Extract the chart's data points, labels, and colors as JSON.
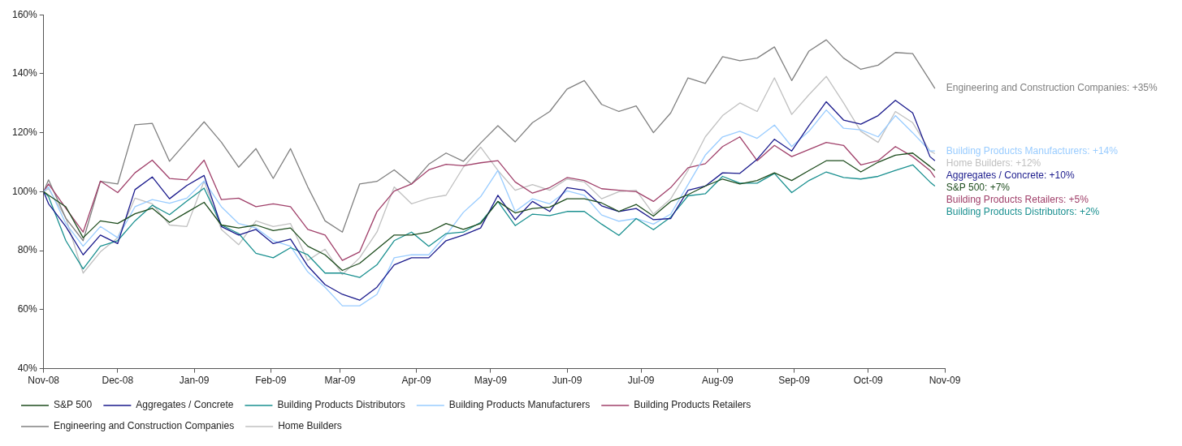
{
  "chart_data": {
    "type": "line",
    "legend": "bottom",
    "grid": false,
    "marker": "none",
    "line_style": "solid",
    "x": [
      "2008-11-01",
      "2008-11-03",
      "2008-11-10",
      "2008-11-17",
      "2008-11-24",
      "2008-12-01",
      "2008-12-08",
      "2008-12-15",
      "2008-12-22",
      "2008-12-29",
      "2009-01-05",
      "2009-01-12",
      "2009-01-19",
      "2009-01-26",
      "2009-02-02",
      "2009-02-09",
      "2009-02-16",
      "2009-02-23",
      "2009-03-02",
      "2009-03-09",
      "2009-03-16",
      "2009-03-23",
      "2009-03-30",
      "2009-04-06",
      "2009-04-13",
      "2009-04-20",
      "2009-04-27",
      "2009-05-04",
      "2009-05-11",
      "2009-05-18",
      "2009-05-25",
      "2009-06-01",
      "2009-06-08",
      "2009-06-15",
      "2009-06-22",
      "2009-06-29",
      "2009-07-06",
      "2009-07-13",
      "2009-07-20",
      "2009-07-27",
      "2009-08-03",
      "2009-08-10",
      "2009-08-17",
      "2009-08-24",
      "2009-08-31",
      "2009-09-07",
      "2009-09-14",
      "2009-09-21",
      "2009-09-28",
      "2009-10-05",
      "2009-10-12",
      "2009-10-19",
      "2009-10-26",
      "2009-10-28"
    ],
    "xlim": [
      "2008-11-01",
      "2009-11-01"
    ],
    "xticks": [
      {
        "value": "2008-11",
        "label": "Nov-08"
      },
      {
        "value": "2008-12",
        "label": "Dec-08"
      },
      {
        "value": "2009-01",
        "label": "Jan-09"
      },
      {
        "value": "2009-02",
        "label": "Feb-09"
      },
      {
        "value": "2009-03",
        "label": "Mar-09"
      },
      {
        "value": "2009-04",
        "label": "Apr-09"
      },
      {
        "value": "2009-05",
        "label": "May-09"
      },
      {
        "value": "2009-06",
        "label": "Jun-09"
      },
      {
        "value": "2009-07",
        "label": "Jul-09"
      },
      {
        "value": "2009-08",
        "label": "Aug-09"
      },
      {
        "value": "2009-09",
        "label": "Sep-09"
      },
      {
        "value": "2009-10",
        "label": "Oct-09"
      },
      {
        "value": "2009-11",
        "label": "Nov-09"
      }
    ],
    "ylim": [
      40,
      160
    ],
    "yticks": [
      {
        "value": 40,
        "label": "40%"
      },
      {
        "value": 60,
        "label": "60%"
      },
      {
        "value": 80,
        "label": "80%"
      },
      {
        "value": 100,
        "label": "100%"
      },
      {
        "value": 120,
        "label": "120%"
      },
      {
        "value": 140,
        "label": "140%"
      },
      {
        "value": 160,
        "label": "160%"
      }
    ],
    "series": [
      {
        "name": "S&P 500",
        "color": "#1e4d1e",
        "values": [
          100,
          98.8,
          94.9,
          84.4,
          90.1,
          89.2,
          92.5,
          94.4,
          89.6,
          93,
          96.4,
          88.7,
          87.7,
          88.7,
          86.8,
          87.7,
          81.5,
          78.6,
          73.3,
          75.7,
          80.5,
          85.3,
          85.3,
          86.3,
          89.2,
          87.2,
          89.2,
          96.7,
          92.8,
          94.3,
          94.8,
          97.6,
          97.6,
          96.2,
          93.3,
          95.7,
          91.7,
          96.7,
          99,
          101.9,
          104.3,
          102.6,
          103.8,
          106.4,
          103.8,
          107.2,
          110.5,
          110.5,
          106.7,
          110,
          112.4,
          113.1,
          108.6,
          107.2
        ]
      },
      {
        "name": "Aggregates / Concrete",
        "color": "#1a1a8c",
        "values": [
          100,
          95.9,
          88.2,
          78.6,
          85.3,
          82.4,
          100.7,
          105,
          97.6,
          102.1,
          105.5,
          88.2,
          85.3,
          87.2,
          82.4,
          83.9,
          74.8,
          68.5,
          65.2,
          63.2,
          67.6,
          75.2,
          77.6,
          77.6,
          83.4,
          85.3,
          87.7,
          98.8,
          90.5,
          96.7,
          93.3,
          101.4,
          100.5,
          95.2,
          93.3,
          94.3,
          90.5,
          90.9,
          100.5,
          101.9,
          106.4,
          106.2,
          111,
          117.8,
          113.8,
          122.4,
          130.5,
          124.3,
          122.9,
          125.8,
          131,
          126.7,
          111.9,
          110.5
        ]
      },
      {
        "name": "Building Products Distributors",
        "color": "#1a9090",
        "values": [
          100,
          98.3,
          83.4,
          73.8,
          81.5,
          83.4,
          90.1,
          95.4,
          92.2,
          96.8,
          101.2,
          88.7,
          85.8,
          79.1,
          77.6,
          81,
          78.6,
          72.4,
          72.4,
          70.9,
          75.2,
          83.4,
          86.3,
          81.5,
          85.8,
          86.3,
          89.6,
          96.7,
          88.5,
          92.4,
          91.9,
          93.3,
          93.3,
          89,
          85.2,
          90.9,
          87.1,
          91.4,
          98.6,
          99.3,
          105.2,
          102.9,
          102.9,
          106.2,
          99.7,
          103.8,
          106.7,
          104.8,
          104.3,
          105.2,
          107.2,
          109.1,
          103.3,
          101.9
        ]
      },
      {
        "name": "Building Products Manufacturers",
        "color": "#99ccff",
        "values": [
          100,
          101.6,
          89.2,
          81.5,
          88.2,
          84.4,
          94.9,
          97.3,
          96.1,
          97.8,
          103.6,
          94.9,
          89.2,
          87.7,
          83.4,
          81.5,
          72.8,
          67.6,
          61.3,
          61.3,
          65.2,
          77.6,
          78.6,
          78.6,
          85.3,
          93,
          98.3,
          107.2,
          93.3,
          97.6,
          95.9,
          100.3,
          98.8,
          92.1,
          90,
          90.9,
          89,
          92.4,
          102.4,
          112.4,
          118.6,
          120.5,
          118.1,
          122.6,
          115.3,
          120.5,
          127.7,
          121.5,
          121,
          118.6,
          125.8,
          120,
          113.8,
          113.8
        ]
      },
      {
        "name": "Building Products Retailers",
        "color": "#a0406a",
        "values": [
          100,
          102.6,
          94.4,
          86.3,
          103.6,
          99.7,
          106.4,
          110.7,
          104.5,
          104,
          110.7,
          97.3,
          97.8,
          94.9,
          95.9,
          94.9,
          87.2,
          85.3,
          76.7,
          79.6,
          93.2,
          100.2,
          102.6,
          107.4,
          109.3,
          108.8,
          109.8,
          110.5,
          103.3,
          99.5,
          101.4,
          104.8,
          103.8,
          101,
          100.5,
          100,
          96.7,
          101.4,
          108.1,
          109.5,
          115.3,
          118.6,
          110.5,
          115.7,
          111.9,
          114.3,
          116.7,
          115.7,
          109.1,
          110.5,
          115.3,
          111.9,
          107.2,
          104.8
        ]
      },
      {
        "name": "Engineering and Construction Companies",
        "color": "#808080",
        "values": [
          100,
          104,
          91,
          83.4,
          103.5,
          102.6,
          122.7,
          123.2,
          110.3,
          117,
          123.7,
          116.8,
          108.3,
          114.6,
          104.5,
          114.6,
          101.6,
          90.1,
          86.3,
          102.6,
          103.5,
          107.4,
          102.6,
          109.3,
          113.1,
          110.3,
          116.5,
          122.4,
          116.9,
          123.4,
          127.2,
          134.8,
          137.7,
          129.6,
          127.2,
          129.1,
          120,
          126.7,
          138.6,
          136.7,
          145.8,
          144.4,
          145.3,
          149.1,
          137.7,
          147.7,
          151.5,
          145.3,
          141.5,
          142.9,
          147.2,
          146.8,
          137.7,
          135
        ]
      },
      {
        "name": "Home Builders",
        "color": "#c0c0c0",
        "values": [
          100,
          101,
          91.1,
          72.4,
          79.6,
          84.4,
          97.8,
          95.9,
          88.7,
          88.2,
          103.6,
          87.2,
          82,
          90.1,
          88.2,
          89.2,
          76.7,
          80.5,
          71.9,
          77.6,
          86.3,
          101.6,
          95.9,
          97.8,
          98.8,
          108.3,
          115.1,
          107.2,
          100.5,
          102.4,
          100.5,
          104.3,
          103.3,
          97.6,
          100,
          100.5,
          92.4,
          97.6,
          107.2,
          118.6,
          125.8,
          130.1,
          127.2,
          138.6,
          126.2,
          132.9,
          139.1,
          130.1,
          120.5,
          116.7,
          127.2,
          123.4,
          113.8,
          112.9
        ]
      }
    ],
    "annotations": [
      {
        "text": "Engineering and Construction Companies: +35%",
        "x": "2009-10-28",
        "y": 135
      },
      {
        "text": "Building Products Manufacturers: +14%",
        "x": "2009-10-28",
        "y": 113.8
      },
      {
        "text": "Home Builders: +12%",
        "x": "2009-10-28",
        "y": 112.9
      },
      {
        "text": "Aggregates / Concrete: +10%",
        "x": "2009-10-28",
        "y": 110.5
      },
      {
        "text": "S&P 500: +7%",
        "x": "2009-10-28",
        "y": 107.2
      },
      {
        "text": "Building Products Retailers: +5%",
        "x": "2009-10-28",
        "y": 104.8
      },
      {
        "text": "Building Products Distributors: +2%",
        "x": "2009-10-28",
        "y": 101.9
      }
    ]
  }
}
